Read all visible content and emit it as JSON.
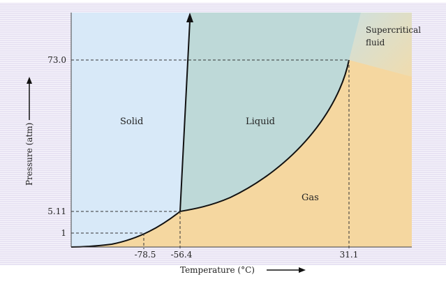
{
  "diagram": {
    "regions": {
      "solid": "Solid",
      "liquid": "Liquid",
      "gas": "Gas",
      "supercritical_line1": "Supercritical",
      "supercritical_line2": "fluid"
    },
    "axes": {
      "y_label": "Pressure (atm)",
      "x_label": "Temperature (°C)"
    },
    "y_ticks": [
      "73.0",
      "5.11",
      "1"
    ],
    "x_ticks": [
      "-78.5",
      "-56.4",
      "31.1"
    ],
    "colors": {
      "solid": "#d7e9f9",
      "liquid": "#bcd8d8",
      "gas": "#f6d9a2",
      "supercritical": "#e8ddc0",
      "background_band": "#e6e1f2",
      "curve": "#111111",
      "dashed": "#333333"
    }
  }
}
